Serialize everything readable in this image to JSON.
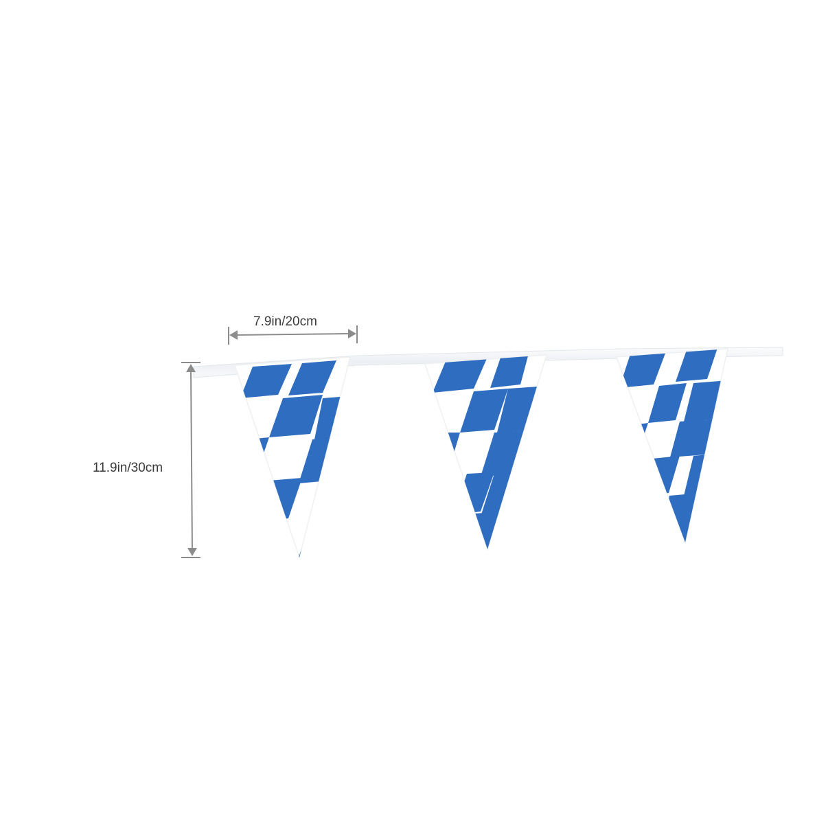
{
  "product": {
    "name": "Bavarian pennant bunting",
    "pennant_count": 3,
    "colors": {
      "blue": "#2f6dc0",
      "white": "#ffffff",
      "string": "#f1f3f5",
      "dimension_line": "#8c8c8c",
      "label_text": "#3a3a3a"
    }
  },
  "dimensions": {
    "width": {
      "label": "7.9in/20cm"
    },
    "height": {
      "label": "11.9in/30cm"
    }
  }
}
